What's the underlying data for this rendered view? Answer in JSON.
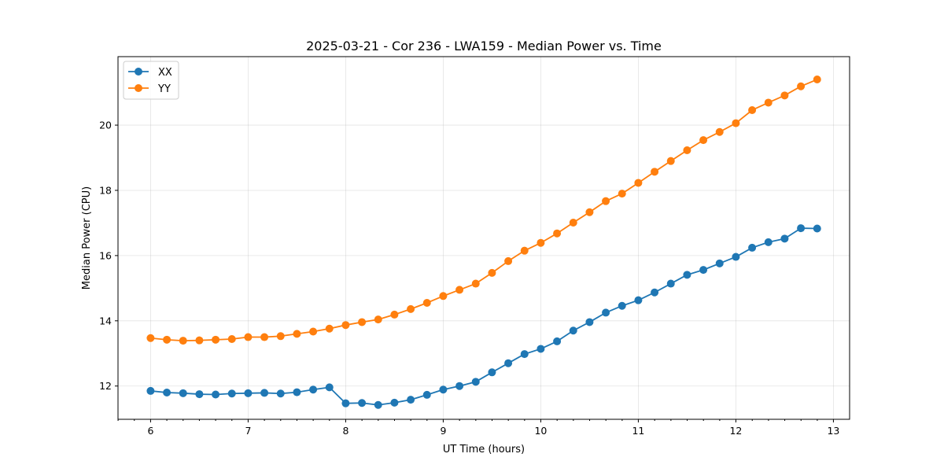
{
  "chart_data": {
    "type": "line",
    "title": "2025-03-21 - Cor 236 - LWA159 - Median Power vs. Time",
    "xlabel": "UT Time (hours)",
    "ylabel": "Median Power (CPU)",
    "xlim": [
      5.666,
      13.166
    ],
    "ylim": [
      10.98,
      22.1
    ],
    "xticks": [
      6,
      7,
      8,
      9,
      10,
      11,
      12,
      13
    ],
    "xminor_step": 0.1667,
    "yticks": [
      12,
      14,
      16,
      18,
      20
    ],
    "grid": true,
    "legend_position": "top-left",
    "x": [
      6.0,
      6.1667,
      6.3333,
      6.5,
      6.6667,
      6.8333,
      7.0,
      7.1667,
      7.3333,
      7.5,
      7.6667,
      7.8333,
      8.0,
      8.1667,
      8.3333,
      8.5,
      8.6667,
      8.8333,
      9.0,
      9.1667,
      9.3333,
      9.5,
      9.6667,
      9.8333,
      10.0,
      10.1667,
      10.3333,
      10.5,
      10.6667,
      10.8333,
      11.0,
      11.1667,
      11.3333,
      11.5,
      11.6667,
      11.8333,
      12.0,
      12.1667,
      12.3333,
      12.5,
      12.6667,
      12.8333
    ],
    "series": [
      {
        "name": "XX",
        "color": "#1f77b4",
        "values": [
          11.85,
          11.8,
          11.78,
          11.75,
          11.74,
          11.77,
          11.78,
          11.79,
          11.77,
          11.81,
          11.89,
          11.96,
          11.47,
          11.48,
          11.42,
          11.49,
          11.58,
          11.73,
          11.89,
          12.0,
          12.13,
          12.42,
          12.7,
          12.98,
          13.14,
          13.37,
          13.7,
          13.96,
          14.25,
          14.46,
          14.63,
          14.87,
          15.14,
          15.41,
          15.56,
          15.76,
          15.96,
          16.24,
          16.41,
          16.52,
          16.84,
          16.83
        ]
      },
      {
        "name": "YY",
        "color": "#ff7f0e",
        "values": [
          13.47,
          13.42,
          13.39,
          13.4,
          13.42,
          13.44,
          13.5,
          13.5,
          13.53,
          13.6,
          13.67,
          13.76,
          13.87,
          13.96,
          14.04,
          14.19,
          14.36,
          14.55,
          14.76,
          14.95,
          15.14,
          15.47,
          15.83,
          16.15,
          16.39,
          16.68,
          17.01,
          17.33,
          17.67,
          17.9,
          18.23,
          18.57,
          18.9,
          19.23,
          19.54,
          19.79,
          20.06,
          20.46,
          20.69,
          20.91,
          21.19,
          21.4
        ]
      }
    ]
  }
}
